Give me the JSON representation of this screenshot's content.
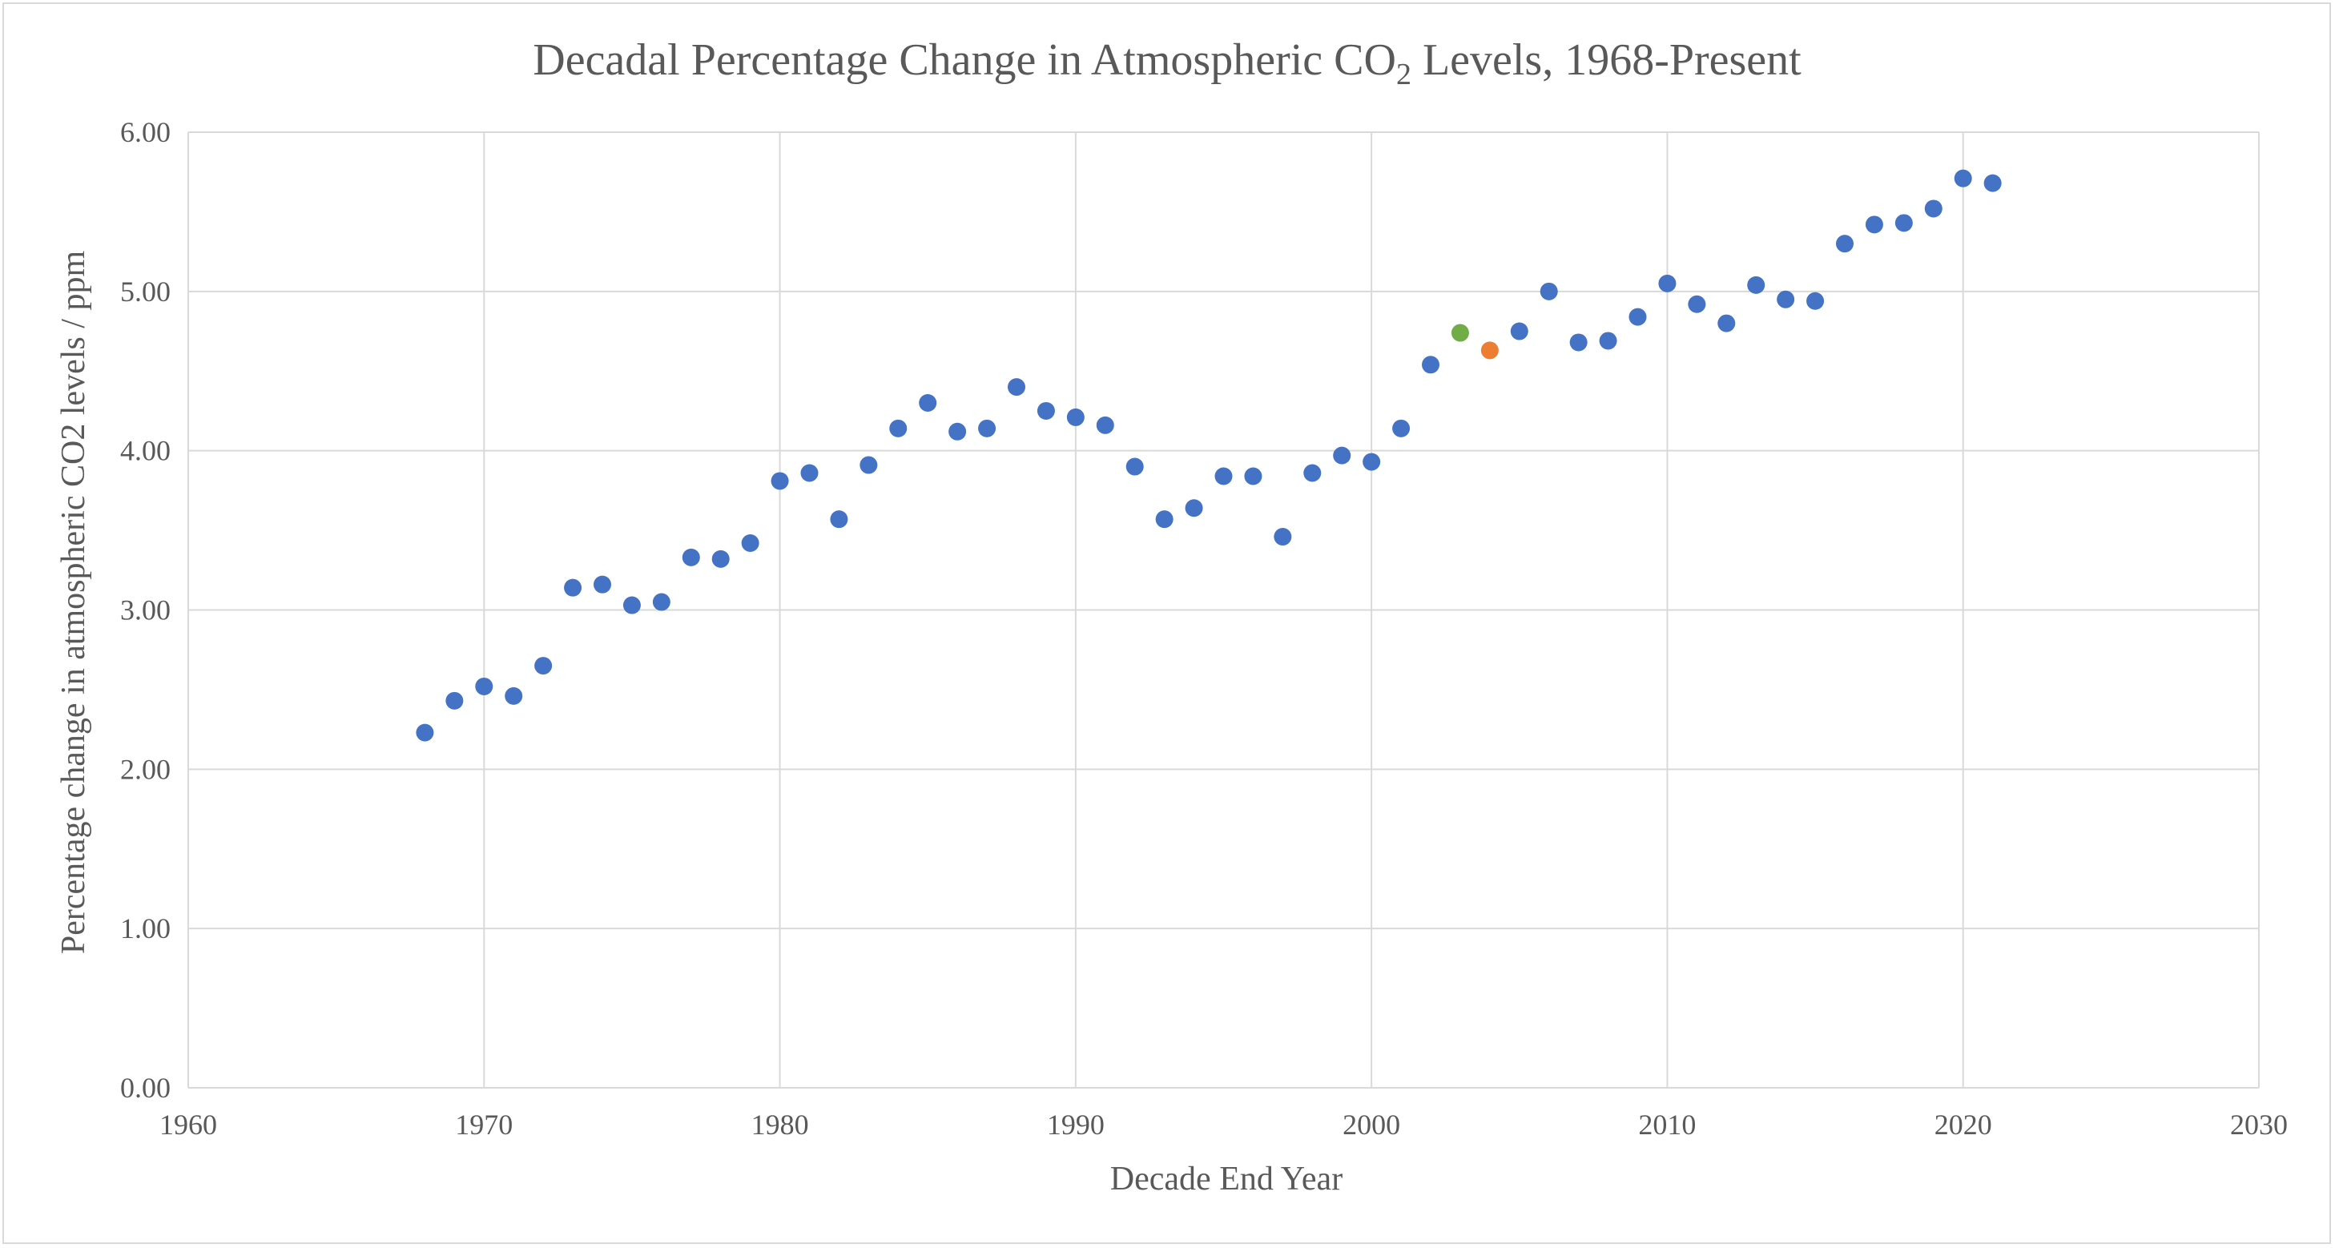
{
  "chart_data": {
    "type": "scatter",
    "title": "Decadal Percentage Change in Atmospheric CO",
    "title_subscript": "2",
    "title_suffix": " Levels, 1968-Present",
    "xlabel": "Decade End Year",
    "ylabel": "Percentage change in atmospheric CO2 levels / ppm",
    "xlim": [
      1960,
      2030
    ],
    "ylim": [
      0,
      6
    ],
    "x_ticks": [
      "1960",
      "1970",
      "1980",
      "1990",
      "2000",
      "2010",
      "2020",
      "2030"
    ],
    "y_ticks": [
      "0.00",
      "1.00",
      "2.00",
      "3.00",
      "4.00",
      "5.00",
      "6.00"
    ],
    "grid": true,
    "colors": {
      "default": "#4472c4",
      "green": "#70ad47",
      "orange": "#ed7d31",
      "grid": "#d9d9d9",
      "text": "#595959"
    },
    "points": [
      {
        "x": 1968,
        "y": 2.23
      },
      {
        "x": 1969,
        "y": 2.43
      },
      {
        "x": 1970,
        "y": 2.52
      },
      {
        "x": 1971,
        "y": 2.46
      },
      {
        "x": 1972,
        "y": 2.65
      },
      {
        "x": 1973,
        "y": 3.14
      },
      {
        "x": 1974,
        "y": 3.16
      },
      {
        "x": 1975,
        "y": 3.03
      },
      {
        "x": 1976,
        "y": 3.05
      },
      {
        "x": 1977,
        "y": 3.33
      },
      {
        "x": 1978,
        "y": 3.32
      },
      {
        "x": 1979,
        "y": 3.42
      },
      {
        "x": 1980,
        "y": 3.81
      },
      {
        "x": 1981,
        "y": 3.86
      },
      {
        "x": 1982,
        "y": 3.57
      },
      {
        "x": 1983,
        "y": 3.91
      },
      {
        "x": 1984,
        "y": 4.14
      },
      {
        "x": 1985,
        "y": 4.3
      },
      {
        "x": 1986,
        "y": 4.12
      },
      {
        "x": 1987,
        "y": 4.14
      },
      {
        "x": 1988,
        "y": 4.4
      },
      {
        "x": 1989,
        "y": 4.25
      },
      {
        "x": 1990,
        "y": 4.21
      },
      {
        "x": 1991,
        "y": 4.16
      },
      {
        "x": 1992,
        "y": 3.9
      },
      {
        "x": 1993,
        "y": 3.57
      },
      {
        "x": 1994,
        "y": 3.64
      },
      {
        "x": 1995,
        "y": 3.84
      },
      {
        "x": 1996,
        "y": 3.84
      },
      {
        "x": 1997,
        "y": 3.46
      },
      {
        "x": 1998,
        "y": 3.86
      },
      {
        "x": 1999,
        "y": 3.97
      },
      {
        "x": 2000,
        "y": 3.93
      },
      {
        "x": 2001,
        "y": 4.14
      },
      {
        "x": 2002,
        "y": 4.54
      },
      {
        "x": 2003,
        "y": 4.74,
        "color": "#70ad47"
      },
      {
        "x": 2004,
        "y": 4.63,
        "color": "#ed7d31"
      },
      {
        "x": 2005,
        "y": 4.75
      },
      {
        "x": 2006,
        "y": 5.0
      },
      {
        "x": 2007,
        "y": 4.68
      },
      {
        "x": 2008,
        "y": 4.69
      },
      {
        "x": 2009,
        "y": 4.84
      },
      {
        "x": 2010,
        "y": 5.05
      },
      {
        "x": 2011,
        "y": 4.92
      },
      {
        "x": 2012,
        "y": 4.8
      },
      {
        "x": 2013,
        "y": 5.04
      },
      {
        "x": 2014,
        "y": 4.95
      },
      {
        "x": 2015,
        "y": 4.94
      },
      {
        "x": 2016,
        "y": 5.3
      },
      {
        "x": 2017,
        "y": 5.42
      },
      {
        "x": 2018,
        "y": 5.43
      },
      {
        "x": 2019,
        "y": 5.52
      },
      {
        "x": 2020,
        "y": 5.71
      },
      {
        "x": 2021,
        "y": 5.68
      }
    ]
  }
}
